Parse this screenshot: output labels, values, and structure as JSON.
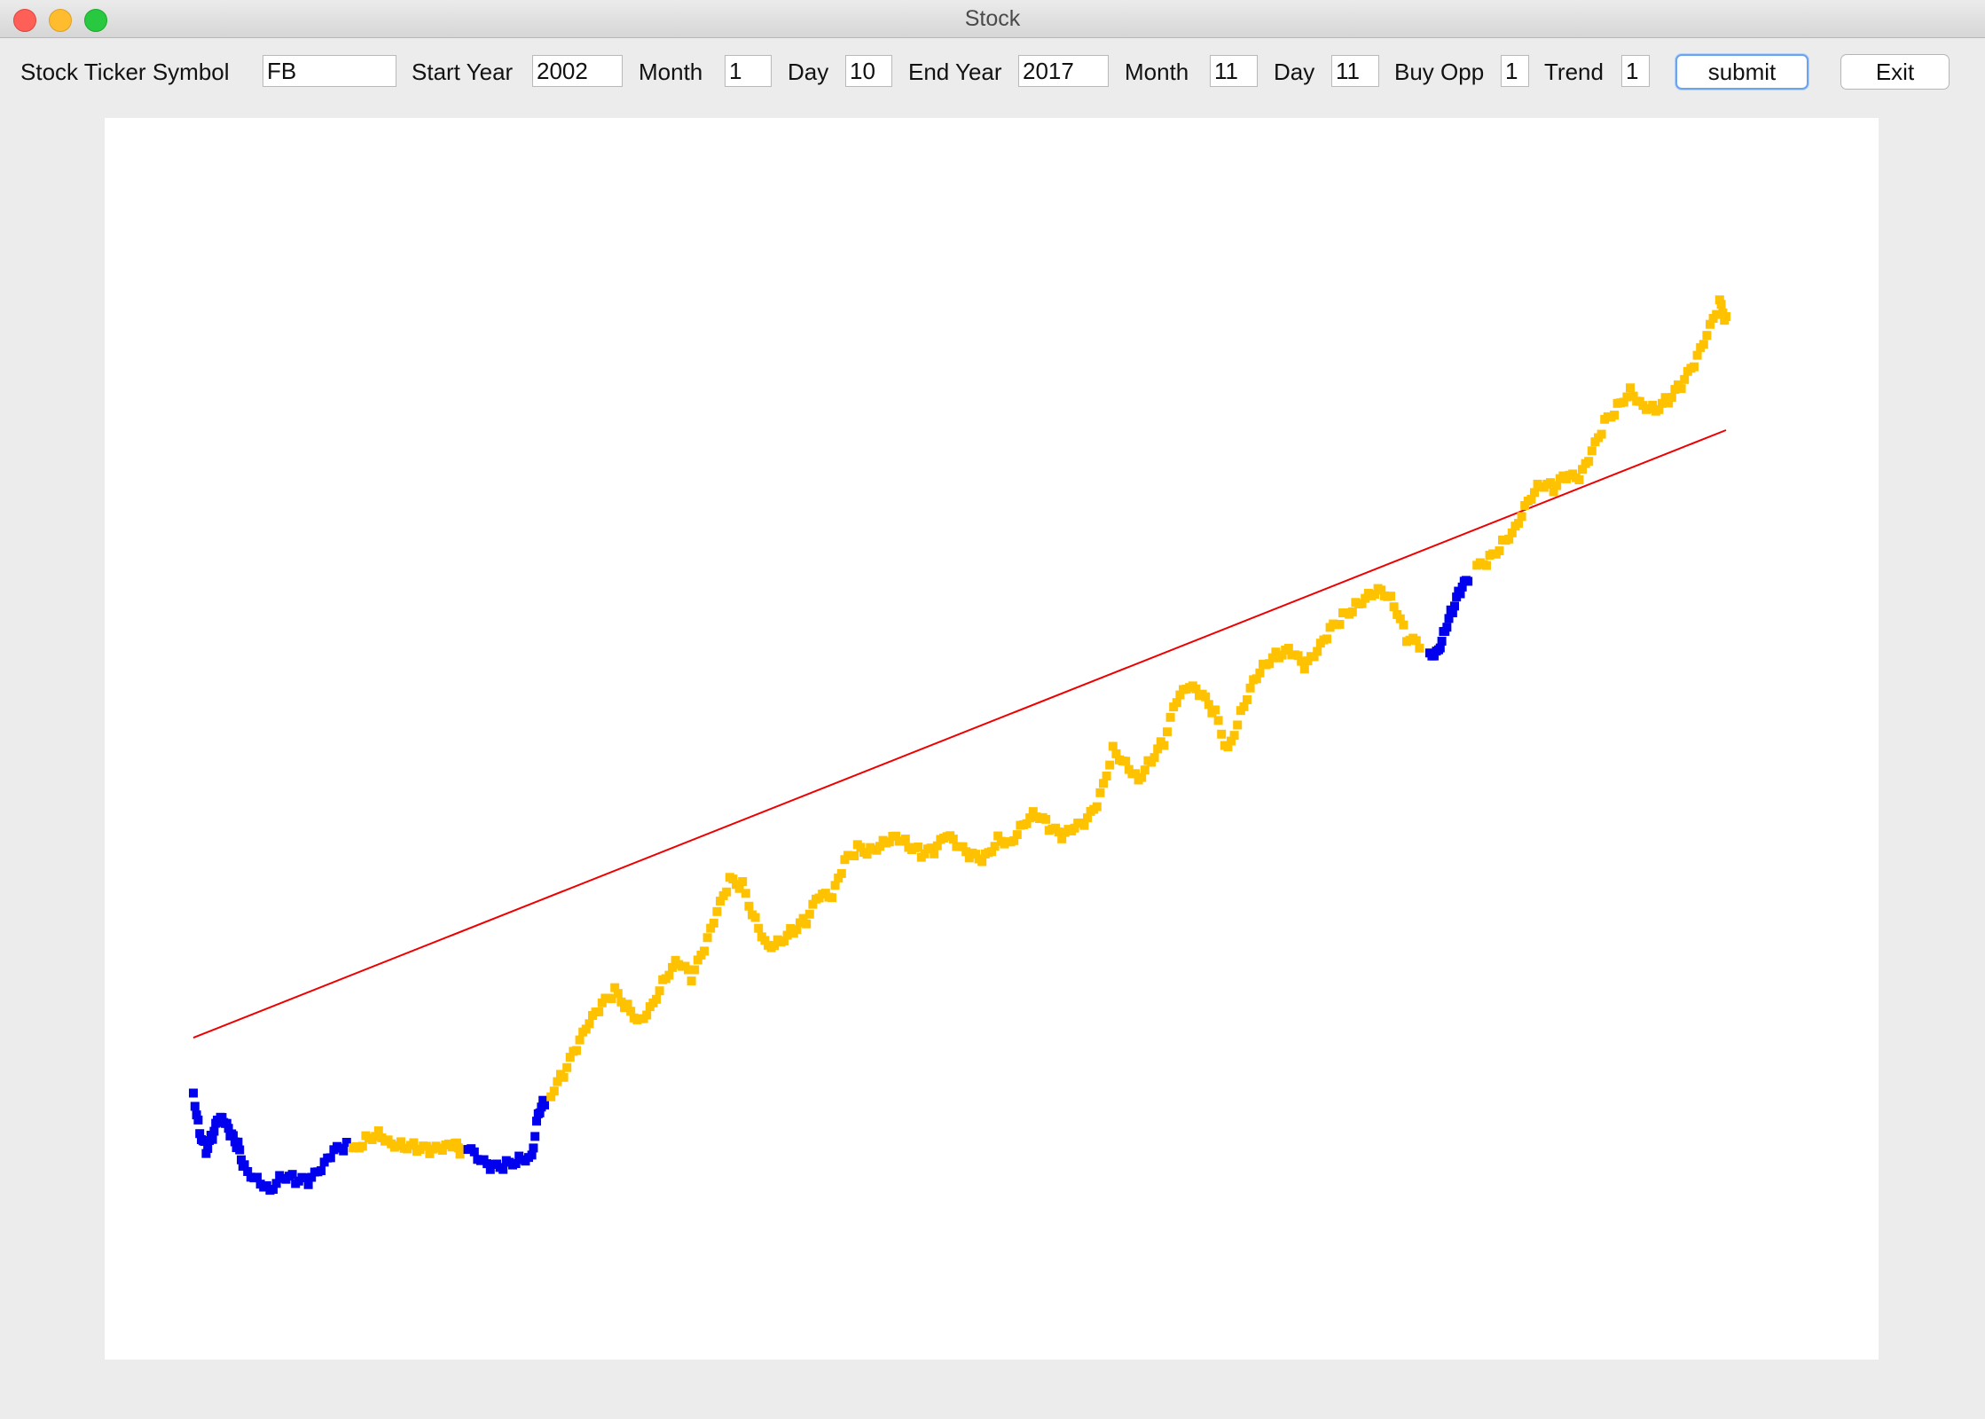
{
  "window": {
    "title": "Stock"
  },
  "form": {
    "ticker_label": "Stock Ticker Symbol",
    "ticker_value": "FB",
    "start_year_label": "Start Year",
    "start_year_value": "2002",
    "start_month_label": "Month",
    "start_month_value": "1",
    "start_day_label": "Day",
    "start_day_value": "10",
    "end_year_label": "End Year",
    "end_year_value": "2017",
    "end_month_label": "Month",
    "end_month_value": "11",
    "end_day_label": "Day",
    "end_day_value": "11",
    "buy_opp_label": "Buy Opp",
    "buy_opp_value": "1",
    "trend_label": "Trend",
    "trend_value": "1",
    "submit_label": "submit",
    "exit_label": "Exit"
  },
  "colors": {
    "price_up": "#ffc200",
    "price_down": "#0000ee",
    "trend_line": "#ee0000",
    "plot_background": "#ffffff"
  },
  "chart_data": {
    "type": "scatter",
    "title": "",
    "xlabel": "",
    "ylabel": "",
    "grid": false,
    "legend": "none",
    "xlim": [
      0,
      100
    ],
    "ylim": [
      0,
      100
    ],
    "trend_line": {
      "x": [
        0,
        100
      ],
      "y": [
        23.3,
        76.0
      ]
    },
    "segments": [
      {
        "color_key": "price_down",
        "points": [
          [
            0,
            18.5
          ],
          [
            0.5,
            15.2
          ],
          [
            1,
            13.6
          ],
          [
            1.5,
            14.8
          ],
          [
            2,
            16.3
          ],
          [
            2.5,
            15.8
          ],
          [
            3,
            14.7
          ],
          [
            3.5,
            13.9
          ],
          [
            4,
            12.0
          ],
          [
            5,
            11.1
          ],
          [
            6,
            10.2
          ],
          [
            7,
            11.4
          ],
          [
            8,
            11.0
          ],
          [
            9,
            10.8
          ],
          [
            10,
            11.8
          ],
          [
            11,
            13.4
          ],
          [
            12,
            13.9
          ]
        ]
      },
      {
        "color_key": "price_up",
        "points": [
          [
            12.5,
            13.4
          ],
          [
            13.5,
            14.5
          ],
          [
            14.5,
            15.1
          ],
          [
            15.5,
            14.2
          ],
          [
            16.5,
            14.0
          ],
          [
            17.5,
            13.8
          ],
          [
            18.5,
            13.5
          ],
          [
            19.5,
            13.6
          ],
          [
            20.5,
            14.0
          ],
          [
            21.0,
            13.3
          ]
        ]
      },
      {
        "color_key": "price_down",
        "points": [
          [
            21.5,
            13.7
          ],
          [
            22.5,
            12.5
          ],
          [
            23.5,
            12.0
          ],
          [
            24.5,
            12.3
          ],
          [
            25.5,
            12.8
          ],
          [
            26.5,
            13.1
          ],
          [
            27.0,
            16.9
          ],
          [
            27.5,
            17.8
          ]
        ]
      },
      {
        "color_key": "price_up",
        "points": [
          [
            28,
            18.5
          ],
          [
            29,
            20.2
          ],
          [
            30,
            22.4
          ],
          [
            31,
            24.5
          ],
          [
            32,
            26.1
          ],
          [
            33,
            27.3
          ],
          [
            34,
            25.9
          ],
          [
            35,
            24.8
          ],
          [
            36,
            26.4
          ],
          [
            37,
            28.7
          ],
          [
            38,
            30.0
          ],
          [
            39,
            28.5
          ],
          [
            40,
            30.9
          ],
          [
            41,
            34.1
          ],
          [
            42,
            36.9
          ],
          [
            43,
            36.5
          ],
          [
            44,
            33.5
          ],
          [
            45,
            31.3
          ],
          [
            46,
            31.8
          ],
          [
            47,
            32.7
          ],
          [
            48,
            33.5
          ],
          [
            49,
            35.6
          ],
          [
            50,
            35.4
          ],
          [
            51,
            38.5
          ],
          [
            52,
            39.7
          ],
          [
            53,
            39.5
          ],
          [
            54,
            40.3
          ],
          [
            55,
            40.9
          ],
          [
            56,
            40.1
          ],
          [
            57,
            39.3
          ],
          [
            58,
            39.5
          ],
          [
            59,
            40.8
          ],
          [
            60,
            39.7
          ],
          [
            61,
            39.0
          ],
          [
            62,
            38.9
          ],
          [
            63,
            40.6
          ],
          [
            64,
            40.3
          ],
          [
            65,
            42.0
          ],
          [
            66,
            42.8
          ],
          [
            67,
            41.6
          ],
          [
            68,
            40.7
          ],
          [
            69,
            41.4
          ],
          [
            70,
            42.1
          ],
          [
            71,
            44.2
          ],
          [
            72,
            48.3
          ],
          [
            73,
            47.2
          ],
          [
            74,
            45.8
          ],
          [
            75,
            47.5
          ],
          [
            76,
            49.0
          ],
          [
            77,
            52.6
          ],
          [
            78,
            53.7
          ],
          [
            79,
            52.9
          ],
          [
            80,
            51.4
          ],
          [
            81,
            48.2
          ],
          [
            82,
            51.5
          ],
          [
            83,
            54.4
          ],
          [
            84,
            55.9
          ],
          [
            85,
            56.6
          ],
          [
            86,
            56.8
          ],
          [
            87,
            55.4
          ],
          [
            88,
            56.7
          ],
          [
            89,
            58.6
          ],
          [
            90,
            59.8
          ],
          [
            91,
            60.8
          ],
          [
            92,
            61.8
          ],
          [
            93,
            62.3
          ],
          [
            94,
            61.0
          ],
          [
            95,
            58.0
          ],
          [
            96,
            57.3
          ]
        ]
      },
      {
        "color_key": "price_down",
        "points": [
          [
            96.8,
            56.5
          ],
          [
            97.5,
            57.0
          ],
          [
            98.0,
            58.8
          ],
          [
            98.6,
            60.5
          ],
          [
            99.2,
            62.1
          ],
          [
            99.8,
            63.0
          ]
        ]
      },
      {
        "color_key": "price_up",
        "points": [
          [
            100.5,
            64.0
          ],
          [
            101.5,
            64.8
          ],
          [
            102.5,
            66.2
          ],
          [
            103.5,
            67.6
          ],
          [
            104.5,
            70.0
          ],
          [
            105.5,
            71.4
          ],
          [
            106.5,
            71.0
          ],
          [
            107.5,
            72.0
          ],
          [
            108.5,
            71.7
          ],
          [
            109.5,
            74.0
          ],
          [
            110.5,
            76.6
          ],
          [
            111.5,
            78.0
          ],
          [
            112.5,
            79.5
          ],
          [
            113.5,
            78.2
          ],
          [
            114.5,
            77.9
          ],
          [
            115.5,
            78.7
          ],
          [
            116.5,
            79.9
          ],
          [
            117.5,
            81.6
          ],
          [
            118.5,
            84.1
          ],
          [
            119.5,
            87.0
          ],
          [
            120.0,
            85.5
          ]
        ]
      }
    ]
  }
}
